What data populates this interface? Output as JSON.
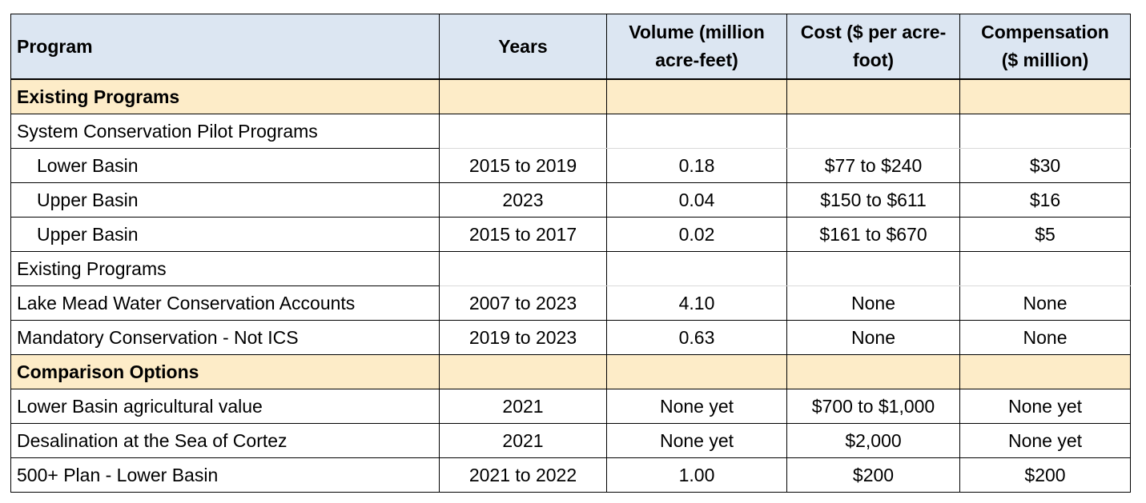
{
  "header": {
    "program": "Program",
    "years": "Years",
    "volume_1": "Volume (million",
    "volume_2": "acre-feet)",
    "cost_1": "Cost ($ per acre-",
    "cost_2": "foot)",
    "comp_1": "Compensation",
    "comp_2": "($ million)"
  },
  "sections": {
    "existing": "Existing Programs",
    "system_pilot": "System Conservation Pilot Programs",
    "existing_plain": "Existing Programs",
    "comparison": "Comparison Options"
  },
  "rows": [
    {
      "program": "Lower Basin",
      "years": "2015 to 2019",
      "volume": "0.18",
      "cost": "$77 to $240",
      "comp": "$30"
    },
    {
      "program": "Upper Basin",
      "years": "2023",
      "volume": "0.04",
      "cost": "$150 to $611",
      "comp": "$16"
    },
    {
      "program": "Upper Basin",
      "years": "2015 to 2017",
      "volume": "0.02",
      "cost": "$161 to $670",
      "comp": "$5"
    },
    {
      "program": "Lake Mead Water Conservation Accounts",
      "years": "2007 to 2023",
      "volume": "4.10",
      "cost": "None",
      "comp": "None"
    },
    {
      "program": "Mandatory Conservation - Not ICS",
      "years": "2019 to 2023",
      "volume": "0.63",
      "cost": "None",
      "comp": "None"
    },
    {
      "program": "Lower Basin agricultural value",
      "years": "2021",
      "volume": "None yet",
      "cost": "$700 to $1,000",
      "comp": "None yet"
    },
    {
      "program": "Desalination at the Sea of Cortez",
      "years": "2021",
      "volume": "None yet",
      "cost": "$2,000",
      "comp": "None yet"
    },
    {
      "program": "500+ Plan - Lower Basin",
      "years": "2021 to 2022",
      "volume": "1.00",
      "cost": "$200",
      "comp": "$200"
    }
  ],
  "colors": {
    "header_bg": "#dce6f2",
    "section_bg": "#fdecc8"
  }
}
